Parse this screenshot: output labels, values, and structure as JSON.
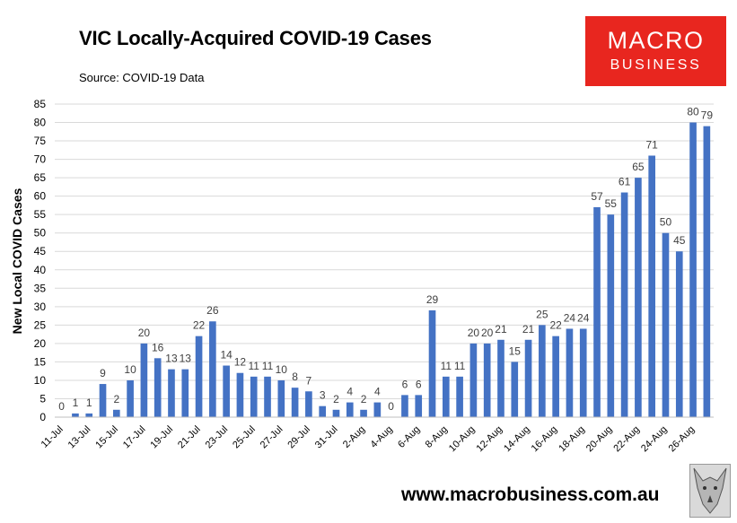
{
  "header": {
    "title": "VIC Locally-Acquired COVID-19 Cases",
    "source": "Source: COVID-19 Data"
  },
  "logo": {
    "line1": "MACRO",
    "line2": "BUSINESS"
  },
  "footer": {
    "website": "www.macrobusiness.com.au"
  },
  "colors": {
    "bar": "#4472c4",
    "grid": "#d9d9d9",
    "logo_bg": "#e8261f"
  },
  "chart_data": {
    "type": "bar",
    "title": "VIC Locally-Acquired COVID-19 Cases",
    "ylabel": "New Local COVID Cases",
    "xlabel": "",
    "ylim": [
      0,
      85
    ],
    "yticks": [
      0,
      5,
      10,
      15,
      20,
      25,
      30,
      35,
      40,
      45,
      50,
      55,
      60,
      65,
      70,
      75,
      80,
      85
    ],
    "grid": true,
    "categories": [
      "11-Jul",
      "12-Jul",
      "13-Jul",
      "14-Jul",
      "15-Jul",
      "16-Jul",
      "17-Jul",
      "18-Jul",
      "19-Jul",
      "20-Jul",
      "21-Jul",
      "22-Jul",
      "23-Jul",
      "24-Jul",
      "25-Jul",
      "26-Jul",
      "27-Jul",
      "28-Jul",
      "29-Jul",
      "30-Jul",
      "31-Jul",
      "1-Aug",
      "2-Aug",
      "3-Aug",
      "4-Aug",
      "5-Aug",
      "6-Aug",
      "7-Aug",
      "8-Aug",
      "9-Aug",
      "10-Aug",
      "11-Aug",
      "12-Aug",
      "13-Aug",
      "14-Aug",
      "15-Aug",
      "16-Aug",
      "17-Aug",
      "18-Aug",
      "19-Aug",
      "20-Aug",
      "21-Aug",
      "22-Aug",
      "23-Aug",
      "24-Aug",
      "25-Aug",
      "26-Aug",
      "27-Aug"
    ],
    "xtick_labels": [
      "11-Jul",
      "13-Jul",
      "15-Jul",
      "17-Jul",
      "19-Jul",
      "21-Jul",
      "23-Jul",
      "25-Jul",
      "27-Jul",
      "29-Jul",
      "31-Jul",
      "2-Aug",
      "4-Aug",
      "6-Aug",
      "8-Aug",
      "10-Aug",
      "12-Aug",
      "14-Aug",
      "16-Aug",
      "18-Aug",
      "20-Aug",
      "22-Aug",
      "24-Aug",
      "26-Aug"
    ],
    "values": [
      0,
      1,
      1,
      9,
      2,
      10,
      20,
      16,
      13,
      13,
      22,
      26,
      14,
      12,
      11,
      11,
      10,
      8,
      7,
      3,
      2,
      4,
      2,
      4,
      0,
      6,
      6,
      29,
      11,
      11,
      20,
      20,
      21,
      15,
      21,
      25,
      22,
      24,
      24,
      57,
      55,
      61,
      65,
      71,
      50,
      45,
      80,
      79
    ]
  }
}
